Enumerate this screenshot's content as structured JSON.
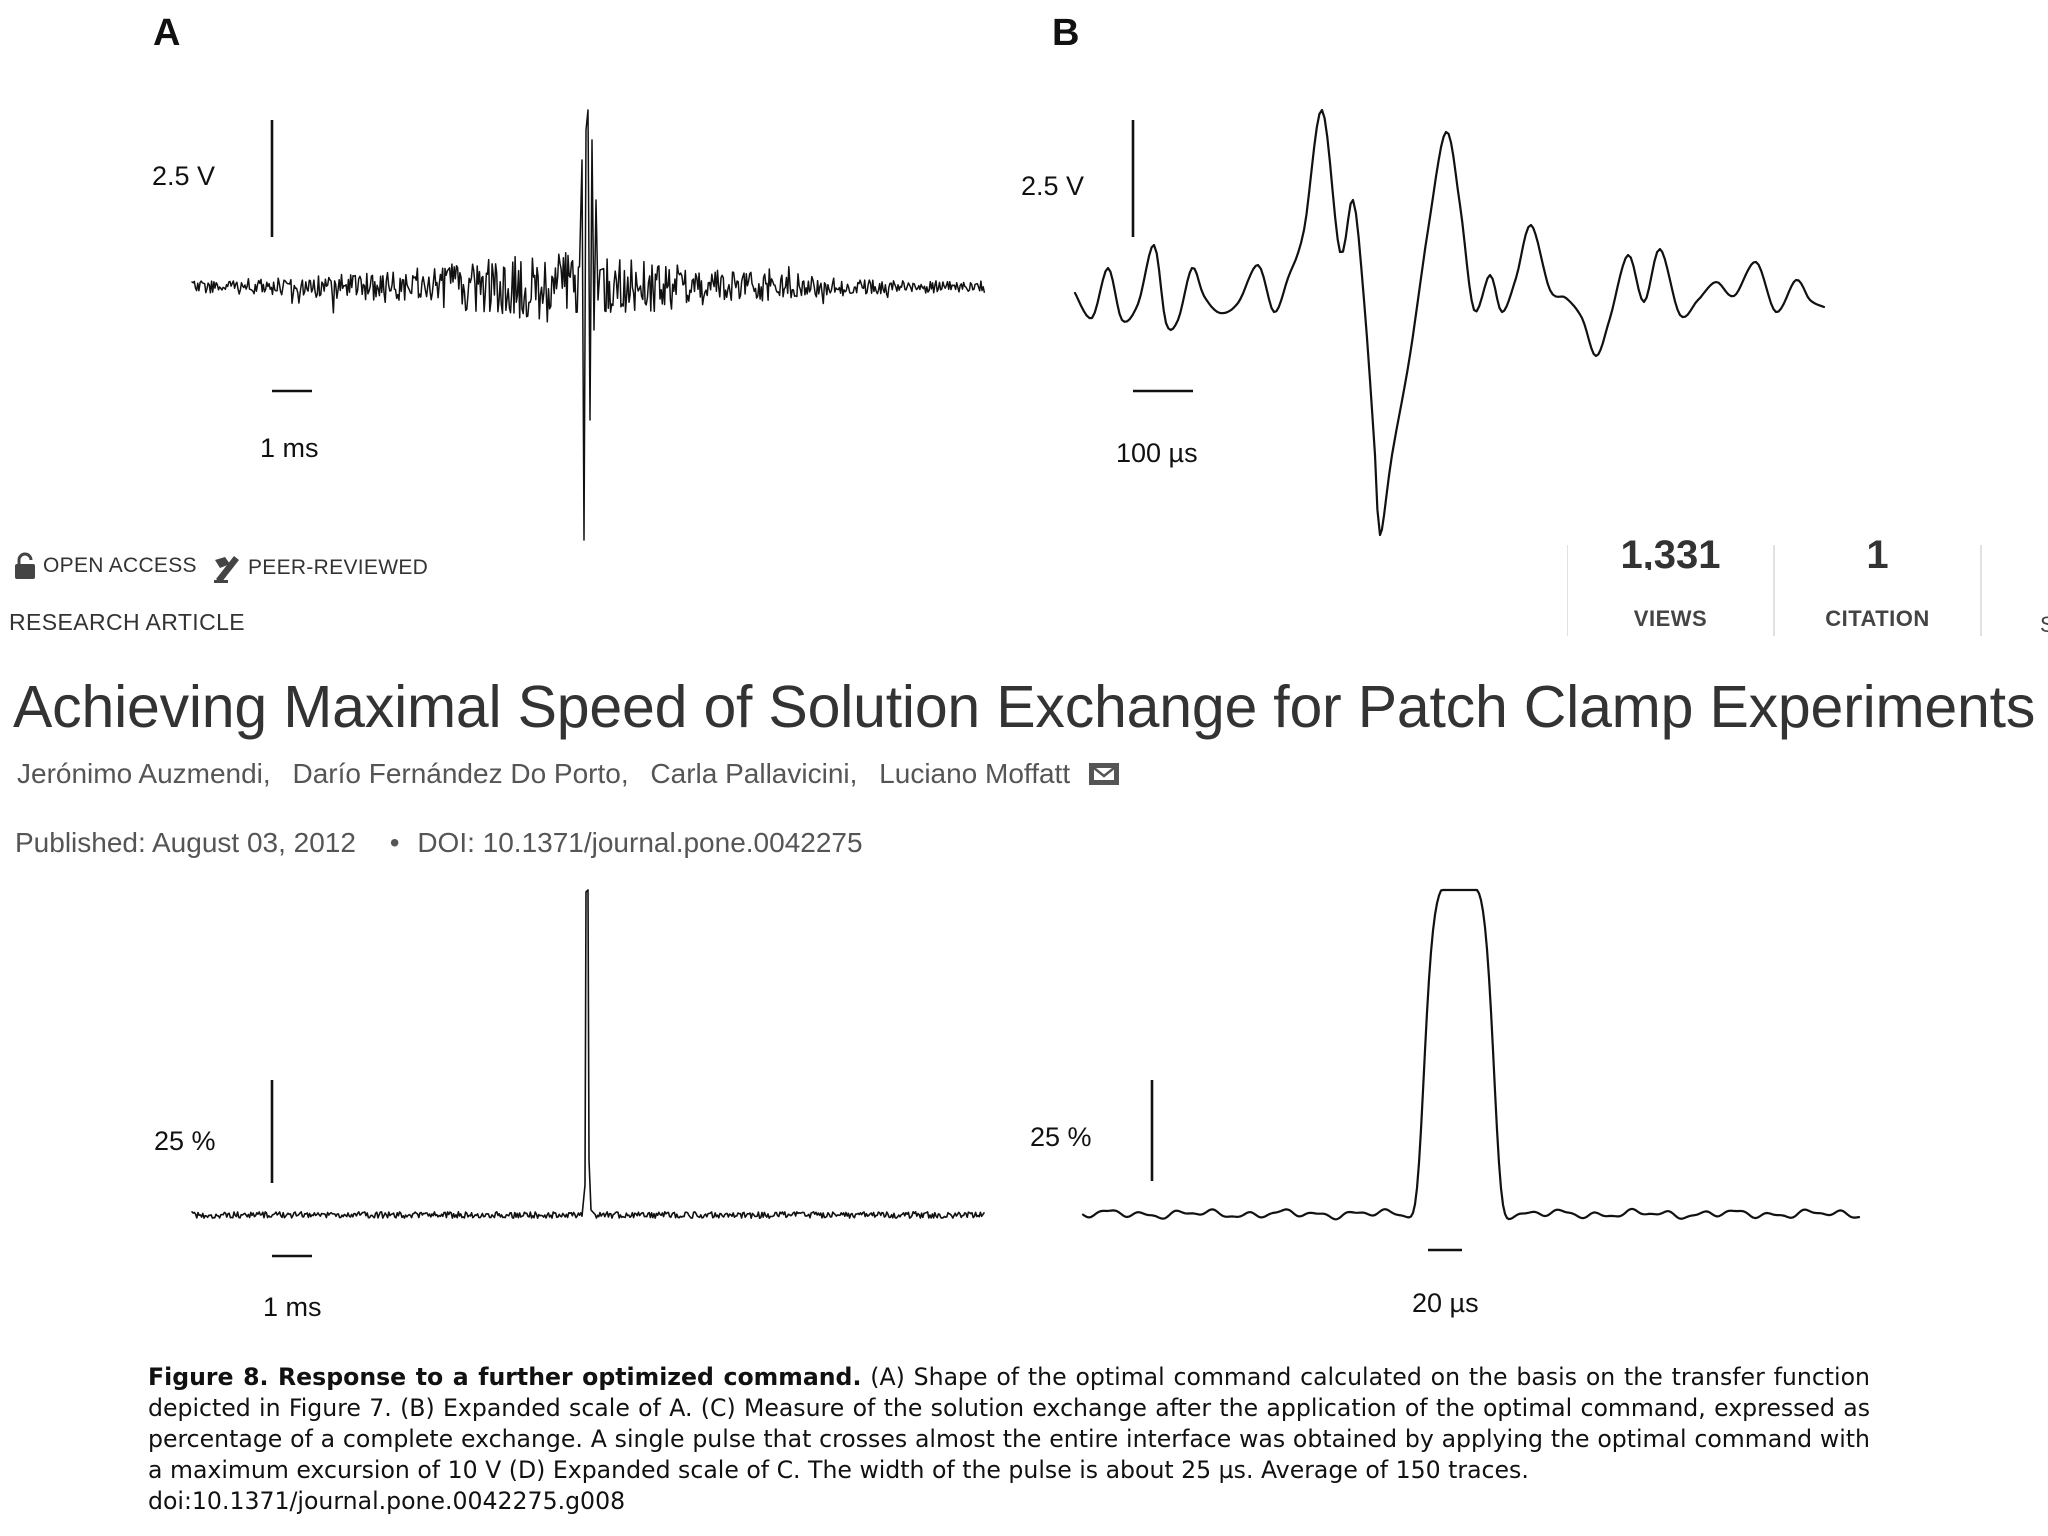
{
  "figure": {
    "panels": [
      {
        "label": "A",
        "vertical_scale": "2.5 V",
        "horizontal_scale": "1 ms"
      },
      {
        "label": "B",
        "vertical_scale": "2.5 V",
        "horizontal_scale": "100 µs"
      },
      {
        "label": "",
        "vertical_scale": "25 %",
        "horizontal_scale": "1 ms"
      },
      {
        "label": "",
        "vertical_scale": "25 %",
        "horizontal_scale": "20 µs"
      }
    ]
  },
  "article": {
    "badges": {
      "open_access": "OPEN ACCESS",
      "peer_reviewed": "PEER-REVIEWED"
    },
    "type": "RESEARCH ARTICLE",
    "title": "Achieving Maximal Speed of Solution Exchange for Patch Clamp Experiments",
    "authors": [
      "Jerónimo Auzmendi,",
      "Darío Fernández Do Porto,",
      "Carla Pallavicini,",
      "Luciano Moffatt"
    ],
    "published": "Published: August 03, 2012",
    "doi": "DOI: 10.1371/journal.pone.0042275"
  },
  "metrics": {
    "views": {
      "value": "1,331",
      "label": "VIEWS"
    },
    "citations": {
      "value": "1",
      "label": "CITATION"
    },
    "edge_fragment": "S"
  },
  "caption": {
    "title": "Figure 8. Response to a further optimized command.",
    "text": " (A) Shape of the optimal command calculated on the basis on the transfer function depicted in Figure 7. (B) Expanded scale of A. (C) Measure of the solution exchange after the application of the optimal command, expressed as percentage of a complete exchange. A single pulse that crosses almost the entire interface was obtained by applying the optimal command with a maximum excursion of 10 V (D) Expanded scale of C. The width of the pulse is about 25 µs. Average of 150 traces.",
    "doi": "doi:10.1371/journal.pone.0042275.g008"
  },
  "icons": {
    "open_access": "unlock-icon",
    "peer_reviewed": "peer-review-icon",
    "corresponding_author": "mail-icon"
  }
}
